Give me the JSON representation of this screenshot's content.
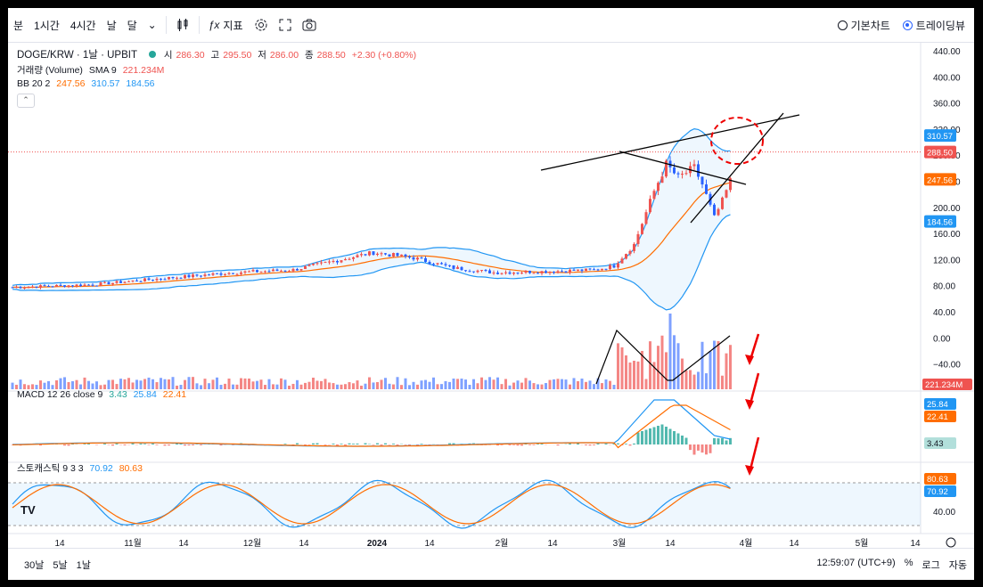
{
  "toolbar": {
    "intervals": [
      "분",
      "1시간",
      "4시간",
      "날",
      "달"
    ],
    "indicators_label": "지표",
    "chart_type_basic": "기본차트",
    "chart_type_tv": "트레이딩뷰"
  },
  "legend": {
    "symbol": "DOGE/KRW · 1날 · UPBIT",
    "open_label": "시",
    "open": "286.30",
    "high_label": "고",
    "high": "295.50",
    "low_label": "저",
    "low": "286.00",
    "close_label": "종",
    "close": "288.50",
    "change": "+2.30 (+0.80%)",
    "volume_name": "거래량 (Volume)",
    "volume_sma": "SMA 9",
    "volume_value": "221.234M",
    "bb_name": "BB 20 2",
    "bb_basis": "247.56",
    "bb_upper": "310.57",
    "bb_lower": "184.56",
    "macd_name": "MACD 12 26 close 9",
    "macd_hist": "3.43",
    "macd_line": "25.84",
    "macd_signal": "22.41",
    "stoch_name": "스토캐스틱 9 3 3",
    "stoch_k": "70.92",
    "stoch_d": "80.63"
  },
  "colors": {
    "up": "#26a69a",
    "down": "#ef5350",
    "candle_up": "#ef5350",
    "candle_down": "#2962ff",
    "bb": "#2196f3",
    "basis": "#ff6d00",
    "macd": "#2196f3",
    "signal": "#ff6d00",
    "stoch_k": "#2196f3",
    "stoch_d": "#ff6d00"
  },
  "price_axis_ticks": [
    "440.00",
    "400.00",
    "360.00",
    "320.00",
    "280.00",
    "240.00",
    "200.00",
    "160.00",
    "120.00",
    "80.00",
    "40.00",
    "0.00",
    "−40.00"
  ],
  "macd_axis_ticks": [],
  "stoch_axis_ticks": [
    "40.00"
  ],
  "axis_badges": {
    "bb_upper": "310.57",
    "last_price": "288.50",
    "bb_basis": "247.56",
    "bb_lower": "184.56",
    "volume": "221.234M",
    "macd": "25.84",
    "signal": "22.41",
    "hist": "3.43",
    "stoch_d": "80.63",
    "stoch_k": "70.92"
  },
  "time_axis_labels": [
    "14",
    "11월",
    "14",
    "12월",
    "14",
    "2024",
    "14",
    "2월",
    "14",
    "3월",
    "14",
    "4월",
    "14",
    "5월",
    "14"
  ],
  "bottom": {
    "ranges": [
      "30날",
      "5날",
      "1날"
    ],
    "time": "12:59:07 (UTC+9)",
    "percent": "%",
    "log": "로그",
    "auto": "자동"
  },
  "chart_data": {
    "type": "candlestick",
    "symbol": "DOGE/KRW",
    "interval": "1D",
    "ylim": [
      0,
      440
    ],
    "price_points_approx": [
      {
        "date": "2023-10",
        "close": 86
      },
      {
        "date": "2023-11",
        "close": 95
      },
      {
        "date": "2023-12-10",
        "close": 140
      },
      {
        "date": "2024-01",
        "close": 115
      },
      {
        "date": "2024-02",
        "close": 110
      },
      {
        "date": "2024-02-25",
        "close": 120
      },
      {
        "date": "2024-03-05",
        "close": 270
      },
      {
        "date": "2024-03-14",
        "close": 260
      },
      {
        "date": "2024-03-19",
        "close": 185
      },
      {
        "date": "2024-03-28",
        "close": 300
      },
      {
        "date": "2024-03-31",
        "close": 288.5
      }
    ],
    "last": {
      "open": 286.3,
      "high": 295.5,
      "low": 286.0,
      "close": 288.5
    },
    "bollinger": {
      "basis": 247.56,
      "upper": 310.57,
      "lower": 184.56
    },
    "volume_last": "221.234M",
    "macd": {
      "macd": 25.84,
      "signal": 22.41,
      "hist": 3.43
    },
    "stochastic": {
      "k": 70.92,
      "d": 80.63
    }
  }
}
